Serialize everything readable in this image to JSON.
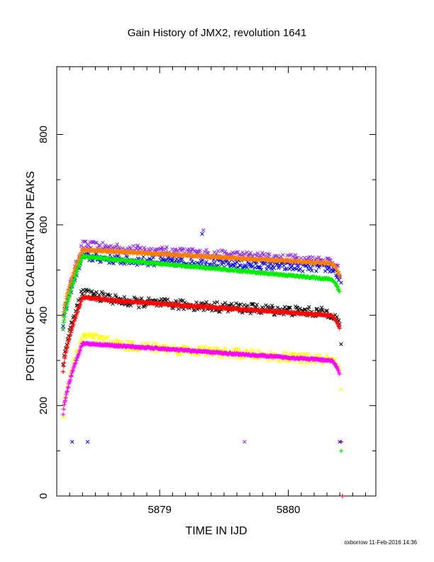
{
  "chart_data": {
    "type": "scatter",
    "title": "Gain History of JMX2, revolution 1641",
    "xlabel": "TIME IN IJD",
    "ylabel": "POSITION OF Cd CALIBRATION PEAKS",
    "xlim": [
      5878.2,
      5880.68
    ],
    "ylim": [
      0,
      950
    ],
    "x_ticks": [
      5879,
      5880
    ],
    "y_ticks": [
      0,
      200,
      400,
      600,
      800
    ],
    "grid": false,
    "legend": "none",
    "series": [
      {
        "color": "#8a2be2",
        "marker": "x",
        "start": 377,
        "rise": 555,
        "plateau": 552,
        "end": 520,
        "noise": 10
      },
      {
        "color": "#0000ee",
        "marker": "x",
        "start": 377,
        "rise": 530,
        "plateau": 525,
        "end": 505,
        "noise": 10
      },
      {
        "color": "#ff7f00",
        "marker": "+",
        "start": 395,
        "rise": 545,
        "plateau": 545,
        "end": 515,
        "noise": 2
      },
      {
        "color": "#00ee00",
        "marker": "+",
        "start": 370,
        "rise": 530,
        "plateau": 530,
        "end": 480,
        "noise": 2
      },
      {
        "color": "#000000",
        "marker": "x",
        "start": 290,
        "rise": 450,
        "plateau": 435,
        "end": 405,
        "noise": 11
      },
      {
        "color": "#ff0000",
        "marker": "+",
        "start": 275,
        "rise": 440,
        "plateau": 437,
        "end": 400,
        "noise": 2
      },
      {
        "color": "#ffff00",
        "marker": "x",
        "start": 180,
        "rise": 355,
        "plateau": 340,
        "end": 300,
        "noise": 11
      },
      {
        "color": "#ff00ff",
        "marker": "+",
        "start": 180,
        "rise": 338,
        "plateau": 338,
        "end": 300,
        "noise": 2
      }
    ],
    "outliers": [
      {
        "x": 5878.32,
        "y": 120,
        "color": "#0000ee",
        "marker": "x"
      },
      {
        "x": 5878.44,
        "y": 120,
        "color": "#0000ee",
        "marker": "x"
      },
      {
        "x": 5879.66,
        "y": 120,
        "color": "#8a2be2",
        "marker": "x"
      },
      {
        "x": 5880.41,
        "y": 120,
        "color": "#ff0000",
        "marker": "+"
      },
      {
        "x": 5880.41,
        "y": 100,
        "color": "#00ee00",
        "marker": "+"
      },
      {
        "x": 5880.4,
        "y": 120,
        "color": "#0000ee",
        "marker": "x"
      },
      {
        "x": 5880.41,
        "y": 336,
        "color": "#000000",
        "marker": "x"
      },
      {
        "x": 5880.41,
        "y": 236,
        "color": "#ffff00",
        "marker": "x"
      },
      {
        "x": 5880.41,
        "y": 472,
        "color": "#0000ee",
        "marker": "x"
      },
      {
        "x": 5880.42,
        "y": 0,
        "color": "#ff0000",
        "marker": "+"
      },
      {
        "x": 5879.34,
        "y": 588,
        "color": "#8a2be2",
        "marker": "x"
      },
      {
        "x": 5879.33,
        "y": 580,
        "color": "#0000ee",
        "marker": "x"
      }
    ]
  },
  "footer": "oxborrow 11-Feb-2016 14:36"
}
